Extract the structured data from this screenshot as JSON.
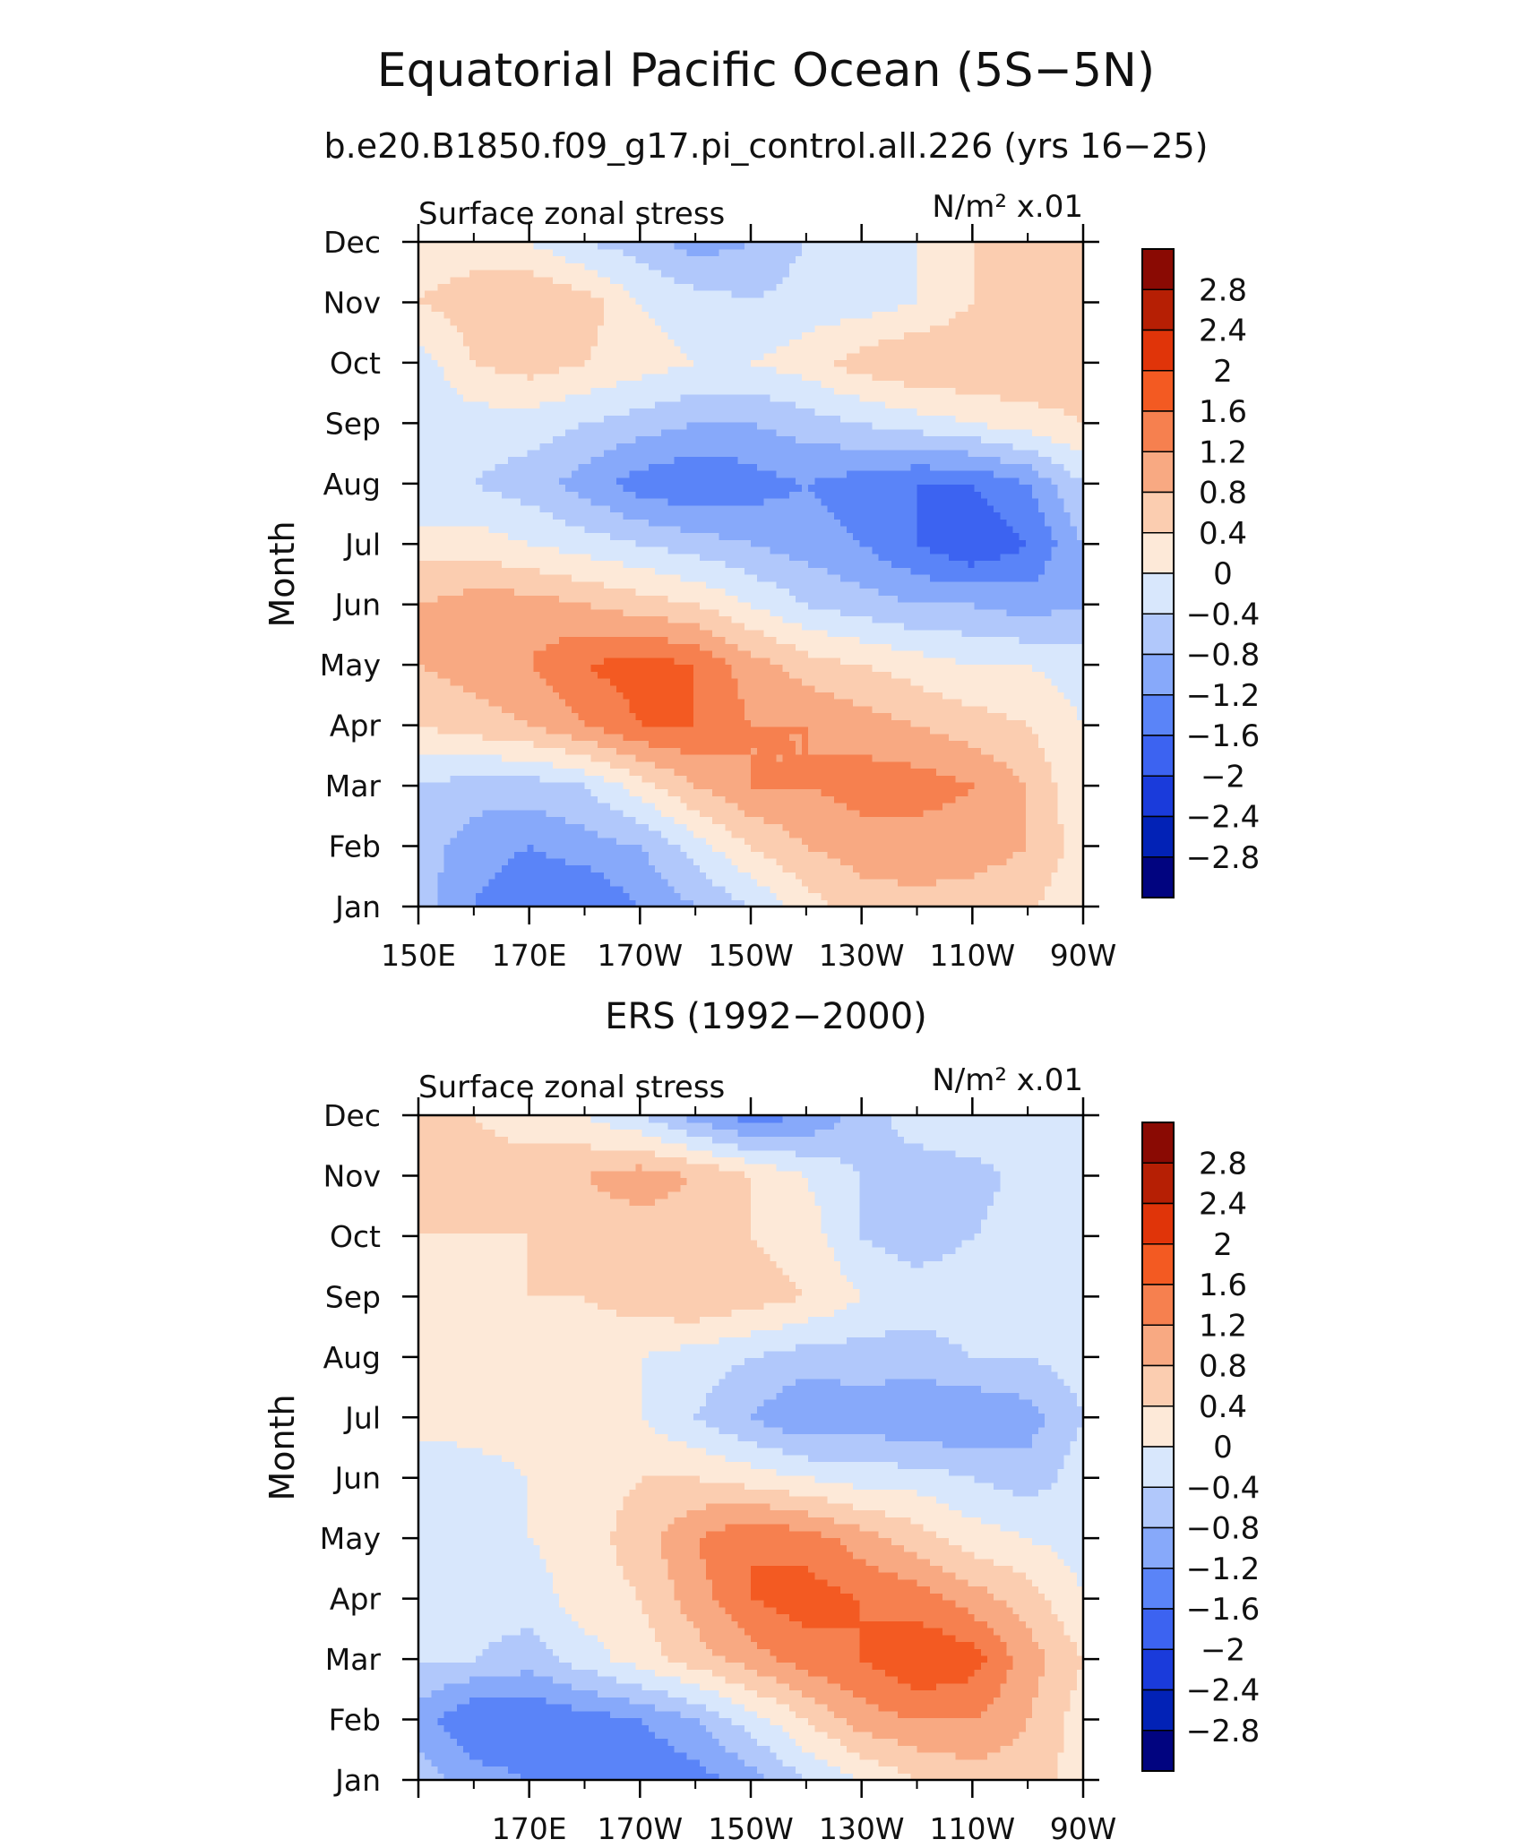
{
  "figure": {
    "title": "Equatorial Pacific Ocean (5S−5N)",
    "subtitle": "b.e20.B1850.f09_g17.pi_control.all.226 (yrs 16−25)"
  },
  "chart_data": [
    {
      "type": "heatmap",
      "heading": "",
      "left_label": "Surface zonal stress",
      "right_label": "N/m² x.01",
      "ylabel": "Month",
      "x_ticks": [
        "150E",
        "170E",
        "170W",
        "150W",
        "130W",
        "110W",
        "90W"
      ],
      "y_categories": [
        "Jan",
        "Feb",
        "Mar",
        "Apr",
        "May",
        "Jun",
        "Jul",
        "Aug",
        "Sep",
        "Oct",
        "Nov",
        "Dec"
      ],
      "x": [
        150,
        160,
        170,
        180,
        190,
        200,
        210,
        220,
        230,
        240,
        250,
        260,
        270
      ],
      "values": [
        [
          -0.6,
          -1.2,
          -1.6,
          -1.6,
          -1.2,
          -0.8,
          -0.4,
          0.2,
          0.6,
          0.7,
          0.6,
          0.5,
          0.0
        ],
        [
          -0.6,
          -1.0,
          -1.2,
          -1.0,
          -0.8,
          -0.2,
          0.4,
          0.8,
          1.0,
          1.0,
          1.0,
          0.8,
          0.2
        ],
        [
          -0.4,
          -0.6,
          -0.6,
          -0.4,
          0.2,
          0.8,
          1.2,
          1.2,
          1.4,
          1.4,
          1.2,
          0.8,
          0.0
        ],
        [
          0.4,
          0.6,
          0.8,
          1.2,
          1.6,
          1.6,
          1.2,
          1.2,
          1.0,
          0.8,
          0.6,
          0.4,
          0.0
        ],
        [
          0.8,
          1.0,
          1.2,
          1.6,
          1.8,
          1.6,
          1.0,
          0.6,
          0.4,
          0.2,
          0.0,
          0.0,
          -0.2
        ],
        [
          0.8,
          1.0,
          1.0,
          0.8,
          0.6,
          0.4,
          0.0,
          -0.4,
          -0.6,
          -0.8,
          -0.8,
          -1.0,
          -0.8
        ],
        [
          0.2,
          0.2,
          0.0,
          -0.2,
          -0.4,
          -0.6,
          -0.8,
          -1.0,
          -1.2,
          -1.6,
          -2.0,
          -1.6,
          -0.8
        ],
        [
          -0.4,
          -0.4,
          -0.6,
          -1.0,
          -1.4,
          -1.6,
          -1.4,
          -1.2,
          -1.4,
          -1.6,
          -1.6,
          -1.2,
          -0.4
        ],
        [
          -0.4,
          -0.2,
          -0.2,
          -0.4,
          -0.6,
          -0.8,
          -0.8,
          -0.6,
          -0.4,
          -0.2,
          0.0,
          0.2,
          0.4
        ],
        [
          -0.2,
          0.4,
          0.6,
          0.4,
          0.2,
          0.0,
          0.0,
          0.2,
          0.6,
          0.8,
          0.8,
          0.8,
          0.6
        ],
        [
          0.4,
          0.6,
          0.8,
          0.6,
          0.0,
          -0.2,
          -0.4,
          -0.2,
          -0.2,
          0.0,
          0.4,
          0.6,
          0.6
        ],
        [
          0.2,
          0.2,
          0.0,
          -0.4,
          -0.6,
          -1.0,
          -0.8,
          -0.4,
          -0.2,
          0.0,
          0.4,
          0.4,
          0.4
        ]
      ],
      "colorbar": {
        "labels": [
          "2.8",
          "2.4",
          "2",
          "1.6",
          "1.2",
          "0.8",
          "0.4",
          "0",
          "−0.4",
          "−0.8",
          "−1.2",
          "−1.6",
          "−2",
          "−2.4",
          "−2.8"
        ],
        "levels": [
          -2.8,
          -2.4,
          -2.0,
          -1.6,
          -1.2,
          -0.8,
          -0.4,
          0,
          0.4,
          0.8,
          1.2,
          1.6,
          2.0,
          2.4,
          2.8
        ],
        "colors": [
          "#010480",
          "#0222b6",
          "#1a3bdb",
          "#3c63f1",
          "#5a84f8",
          "#87a9fa",
          "#b1c8fb",
          "#d8e7fc",
          "#fde9d8",
          "#fbcdb0",
          "#f8a982",
          "#f6804f",
          "#f35a22",
          "#e03409",
          "#b61f04",
          "#8a0a03"
        ]
      }
    },
    {
      "type": "heatmap",
      "heading": "ERS (1992−2000)",
      "left_label": "Surface zonal stress",
      "right_label": "N/m² x.01",
      "ylabel": "Month",
      "x_ticks": [
        "",
        "170E",
        "170W",
        "150W",
        "130W",
        "110W",
        "90W"
      ],
      "y_categories": [
        "Jan",
        "Feb",
        "Mar",
        "Apr",
        "May",
        "Jun",
        "Jul",
        "Aug",
        "Sep",
        "Oct",
        "Nov",
        "Dec"
      ],
      "x": [
        150,
        160,
        170,
        180,
        190,
        200,
        210,
        220,
        230,
        240,
        250,
        260,
        270
      ],
      "values": [
        [
          -0.6,
          -1.0,
          -1.2,
          -1.4,
          -1.6,
          -1.4,
          -1.0,
          -0.4,
          0.0,
          0.4,
          0.6,
          0.6,
          0.2
        ],
        [
          -1.0,
          -1.6,
          -1.6,
          -1.4,
          -1.2,
          -0.8,
          -0.2,
          0.4,
          1.0,
          1.2,
          1.2,
          0.8,
          0.2
        ],
        [
          -0.4,
          -0.4,
          -0.6,
          -0.2,
          0.2,
          0.6,
          1.0,
          1.4,
          1.6,
          2.0,
          1.8,
          1.0,
          0.4
        ],
        [
          0.0,
          -0.2,
          -0.2,
          0.2,
          0.4,
          1.0,
          1.6,
          1.8,
          1.6,
          1.4,
          1.0,
          0.6,
          0.0
        ],
        [
          -0.2,
          0.0,
          0.0,
          0.2,
          0.6,
          1.2,
          1.6,
          1.4,
          1.0,
          0.6,
          0.2,
          0.0,
          -0.2
        ],
        [
          -0.4,
          -0.2,
          0.0,
          0.2,
          0.4,
          0.4,
          0.2,
          0.0,
          -0.2,
          -0.2,
          -0.4,
          -0.6,
          -0.2
        ],
        [
          0.2,
          0.2,
          0.2,
          0.0,
          0.0,
          -0.4,
          -0.8,
          -1.2,
          -1.0,
          -1.2,
          -1.2,
          -1.0,
          -0.4
        ],
        [
          0.4,
          0.4,
          0.4,
          0.2,
          0.0,
          -0.2,
          -0.4,
          -0.6,
          -0.6,
          -0.6,
          -0.4,
          -0.4,
          -0.2
        ],
        [
          0.2,
          0.2,
          0.4,
          0.4,
          0.6,
          0.8,
          0.6,
          0.4,
          0.0,
          -0.2,
          -0.2,
          -0.2,
          0.0
        ],
        [
          0.4,
          0.4,
          0.4,
          0.6,
          0.6,
          0.6,
          0.4,
          0.2,
          -0.4,
          -0.6,
          -0.4,
          -0.2,
          0.0
        ],
        [
          0.4,
          0.6,
          0.6,
          0.8,
          1.0,
          0.8,
          0.4,
          0.0,
          -0.4,
          -0.6,
          -0.6,
          -0.2,
          0.0
        ],
        [
          0.6,
          0.4,
          0.2,
          0.0,
          -0.4,
          -1.0,
          -1.4,
          -1.2,
          -0.6,
          -0.2,
          0.0,
          0.0,
          0.0
        ]
      ],
      "colorbar": {
        "labels": [
          "2.8",
          "2.4",
          "2",
          "1.6",
          "1.2",
          "0.8",
          "0.4",
          "0",
          "−0.4",
          "−0.8",
          "−1.2",
          "−1.6",
          "−2",
          "−2.4",
          "−2.8"
        ],
        "levels": [
          -2.8,
          -2.4,
          -2.0,
          -1.6,
          -1.2,
          -0.8,
          -0.4,
          0,
          0.4,
          0.8,
          1.2,
          1.6,
          2.0,
          2.4,
          2.8
        ],
        "colors": [
          "#010480",
          "#0222b6",
          "#1a3bdb",
          "#3c63f1",
          "#5a84f8",
          "#87a9fa",
          "#b1c8fb",
          "#d8e7fc",
          "#fde9d8",
          "#fbcdb0",
          "#f8a982",
          "#f6804f",
          "#f35a22",
          "#e03409",
          "#b61f04",
          "#8a0a03"
        ]
      }
    }
  ]
}
